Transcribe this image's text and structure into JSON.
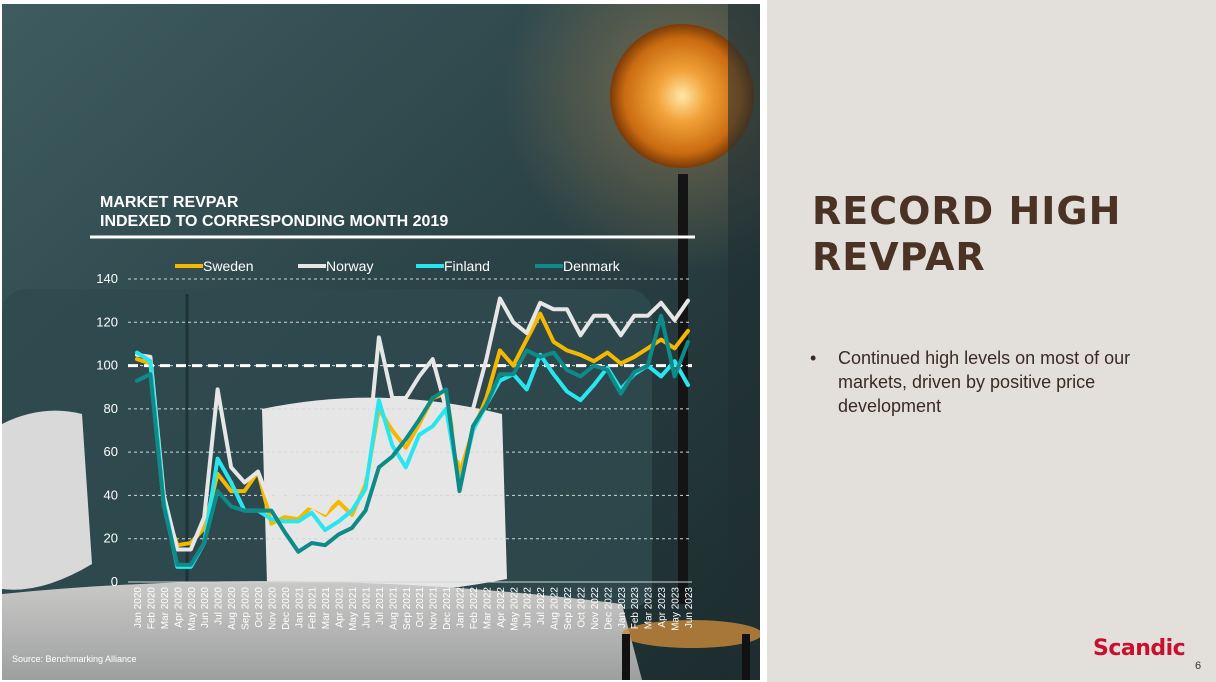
{
  "slide": {
    "heading_line1": "RECORD HIGH",
    "heading_line2": "REVPAR",
    "bullet": "Continued high levels on most of our markets, driven by positive price development",
    "bullet_symbol": "•",
    "logo_text": "Scandic",
    "page_number": "6",
    "source": "Source: Benchmarking Alliance",
    "colors": {
      "panel_bg": "#e3e0db",
      "heading": "#4a3325",
      "logo": "#c8102e"
    }
  },
  "chart_data": {
    "type": "line",
    "title_line1": "MARKET REVPAR",
    "title_line2": "INDEXED TO CORRESPONDING MONTH 2019",
    "xlabel": "",
    "ylabel": "",
    "ylim": [
      0,
      140
    ],
    "yticks": [
      0,
      20,
      40,
      60,
      80,
      100,
      120,
      140
    ],
    "grid": true,
    "legend_position": "top",
    "reference_line": 100,
    "categories": [
      "Jan 2020",
      "Feb 2020",
      "Mar 2020",
      "Apr 2020",
      "May 2020",
      "Jun 2020",
      "Jul 2020",
      "Aug 2020",
      "Sep 2020",
      "Oct 2020",
      "Nov 2020",
      "Dec 2020",
      "Jan 2021",
      "Feb 2021",
      "Mar 2021",
      "Apr 2021",
      "May 2021",
      "Jun 2021",
      "Jul 2021",
      "Aug 2021",
      "Sep 2021",
      "Oct 2021",
      "Nov 2021",
      "Dec 2021",
      "Jan 2022",
      "Feb 2022",
      "Mar 2022",
      "Apr 2022",
      "May 2022",
      "Jun 2022",
      "Jul 2022",
      "Aug 2022",
      "Sep 2022",
      "Oct 2022",
      "Nov 2022",
      "Dec 2022",
      "Jan 2023",
      "Feb 2023",
      "Mar 2023",
      "Apr 2023",
      "May 2023",
      "Jun 2023"
    ],
    "series": [
      {
        "name": "Sweden",
        "color": "#f5b800",
        "values": [
          103,
          101,
          35,
          17,
          18,
          25,
          50,
          42,
          42,
          51,
          27,
          30,
          29,
          35,
          31,
          37,
          31,
          45,
          80,
          70,
          62,
          73,
          85,
          87,
          50,
          70,
          85,
          107,
          100,
          112,
          124,
          111,
          107,
          105,
          102,
          106,
          101,
          104,
          108,
          112,
          108,
          116
        ]
      },
      {
        "name": "Norway",
        "color": "#e6e6e6",
        "values": [
          105,
          104,
          40,
          15,
          15,
          30,
          89,
          53,
          46,
          51,
          35,
          42,
          37,
          35,
          32,
          43,
          45,
          50,
          113,
          85,
          85,
          95,
          103,
          80,
          57,
          80,
          103,
          131,
          120,
          115,
          129,
          126,
          126,
          114,
          123,
          123,
          114,
          123,
          123,
          129,
          121,
          130
        ]
      },
      {
        "name": "Finland",
        "color": "#27e6ef",
        "values": [
          106,
          102,
          37,
          7,
          7,
          18,
          57,
          46,
          33,
          33,
          29,
          28,
          28,
          32,
          24,
          28,
          33,
          43,
          84,
          63,
          53,
          68,
          72,
          80,
          44,
          70,
          82,
          93,
          96,
          89,
          105,
          96,
          88,
          84,
          91,
          99,
          89,
          96,
          100,
          95,
          102,
          91
        ]
      },
      {
        "name": "Denmark",
        "color": "#0e8a88",
        "values": [
          93,
          96,
          35,
          8,
          8,
          18,
          42,
          35,
          33,
          33,
          33,
          23,
          14,
          18,
          17,
          22,
          25,
          33,
          53,
          58,
          66,
          75,
          85,
          89,
          42,
          72,
          82,
          96,
          96,
          107,
          104,
          106,
          98,
          95,
          100,
          98,
          87,
          97,
          100,
          123,
          95,
          111
        ]
      }
    ]
  }
}
